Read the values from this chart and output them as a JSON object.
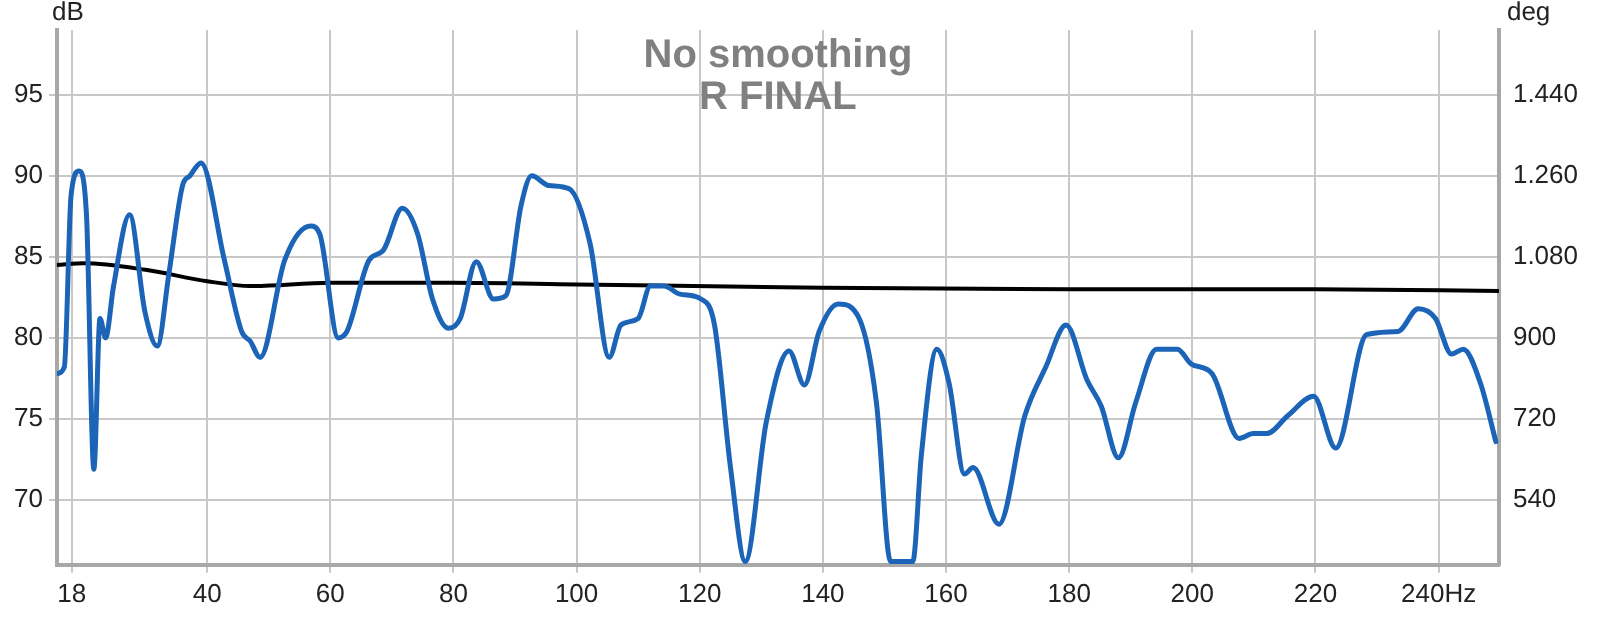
{
  "chart_data": {
    "type": "line",
    "title": "No smoothing",
    "subtitle": "R FINAL",
    "ylabel": "dB",
    "y2label": "deg",
    "xlim": [
      15.6,
      249.8
    ],
    "xticks": [
      18,
      40,
      60,
      80,
      100,
      120,
      140,
      160,
      180,
      200,
      220,
      {
        "value": 240,
        "label": "240Hz"
      }
    ],
    "ylim": [
      66,
      99
    ],
    "yticks": [
      70,
      75,
      80,
      85,
      90,
      95
    ],
    "y2lim": [
      396,
      1584
    ],
    "y2ticks": [
      540,
      720,
      900,
      {
        "value": 1080,
        "label": "1.080"
      },
      {
        "value": 1260,
        "label": "1.260"
      },
      {
        "value": 1440,
        "label": "1.440"
      }
    ],
    "grid": true,
    "legend": false,
    "marker": "none",
    "line_style": "solid",
    "series": [
      {
        "color": "#1b64b8",
        "x": [
          15.6,
          16.8,
          17.9,
          19.2,
          20.4,
          21.6,
          22.6,
          23.5,
          24.8,
          27.4,
          29.9,
          31.9,
          33.8,
          36,
          37.2,
          39,
          42.8,
          45.6,
          47,
          48.6,
          52.6,
          56.8,
          58.3,
          61.3,
          62.7,
          66.3,
          68.6,
          71.7,
          74.2,
          76.6,
          79.2,
          81.1,
          83.7,
          86.5,
          88.5,
          91,
          92.7,
          95.5,
          98.8,
          102.2,
          105.3,
          107.2,
          110,
          112,
          114.2,
          116.8,
          120.2,
          122.4,
          125,
          127.4,
          130.8,
          134.5,
          137,
          139.4,
          142.5,
          145.9,
          148.7,
          151,
          154.6,
          156,
          158.5,
          160.5,
          163,
          164.4,
          168.6,
          172.8,
          176.2,
          179.5,
          182.9,
          185.2,
          188,
          190.8,
          194.2,
          197.6,
          199.8,
          203.2,
          207.6,
          209.9,
          212.1,
          215.5,
          219.7,
          223.3,
          228.3,
          233.4,
          236.7,
          239.5,
          242.1,
          244,
          246.8,
          249.3
        ],
        "values": [
          77.8,
          78.2,
          88.8,
          90.3,
          87.6,
          71.9,
          81.2,
          80,
          83.2,
          87.6,
          81.6,
          79.5,
          84,
          89.4,
          90,
          90.8,
          84.8,
          80.4,
          79.8,
          78.8,
          84.8,
          86.9,
          86.4,
          80,
          80.4,
          84.8,
          85.4,
          88,
          86.4,
          82.4,
          80.6,
          81.2,
          84.7,
          82.4,
          82.6,
          88.2,
          90,
          89.4,
          89.2,
          85.8,
          78.8,
          80.8,
          81.2,
          83.2,
          83.2,
          82.7,
          82.4,
          80.8,
          72,
          66.2,
          74.8,
          79.2,
          77.1,
          80.4,
          82.1,
          81.2,
          76,
          66.2,
          66.2,
          72.8,
          79.3,
          77.2,
          71.6,
          72,
          68.5,
          75.2,
          78.2,
          80.8,
          77.4,
          75.8,
          72.6,
          76,
          79.3,
          79.3,
          78.4,
          77.8,
          73.8,
          74.1,
          74.1,
          75.2,
          76.4,
          73.2,
          80.2,
          80.4,
          81.8,
          81.2,
          79,
          79.3,
          77.2,
          73.6
        ]
      },
      {
        "color": "#000000",
        "x": [
          15.6,
          20,
          30,
          40,
          47,
          60,
          80,
          100,
          140,
          180,
          220,
          249.8
        ],
        "values": [
          84.5,
          84.6,
          84.2,
          83.5,
          83.2,
          83.4,
          83.4,
          83.3,
          83.1,
          83,
          83,
          82.9
        ]
      }
    ]
  }
}
